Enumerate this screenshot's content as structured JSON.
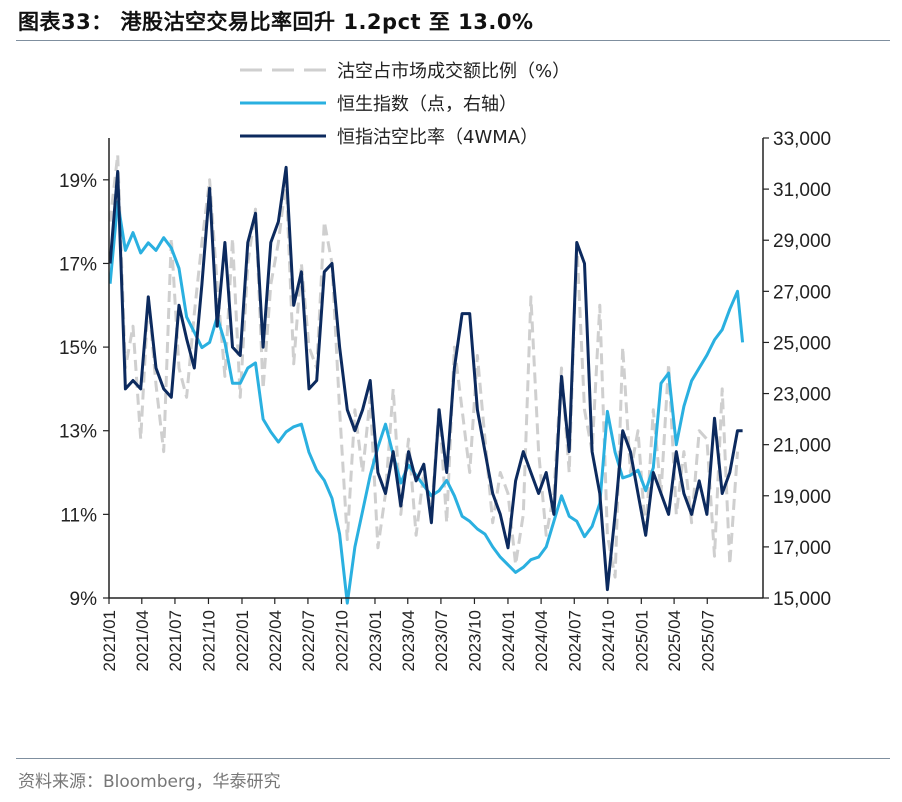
{
  "header": {
    "title": "图表33： 港股沽空交易比率回升 1.2pct 至 13.0%"
  },
  "footer": {
    "source": "资料来源：Bloomberg，华泰研究"
  },
  "chart_data": {
    "type": "line",
    "x_tick_labels": [
      "2021/01",
      "2021/04",
      "2021/07",
      "2021/10",
      "2022/01",
      "2022/04",
      "2022/07",
      "2022/10",
      "2023/01",
      "2023/04",
      "2023/07",
      "2023/10",
      "2024/01",
      "2024/04",
      "2024/07",
      "2024/10",
      "2025/01",
      "2025/04",
      "2025/07"
    ],
    "y_left": {
      "ticks": [
        9,
        11,
        13,
        15,
        17,
        19
      ],
      "tick_labels": [
        "9%",
        "11%",
        "13%",
        "15%",
        "17%",
        "19%"
      ],
      "range": [
        9,
        20
      ]
    },
    "y_right": {
      "ticks": [
        15000,
        17000,
        19000,
        21000,
        23000,
        25000,
        27000,
        29000,
        31000,
        33000
      ],
      "tick_labels": [
        "15,000",
        "17,000",
        "19,000",
        "21,000",
        "23,000",
        "25,000",
        "27,000",
        "29,000",
        "31,000",
        "33,000"
      ],
      "range": [
        15000,
        33000
      ]
    },
    "grid": false,
    "legend_position": "top-left",
    "series": [
      {
        "name": "沽空占市场成交额比例（%）",
        "axis": "left",
        "color": "#cfcfcf",
        "style": "dashed",
        "x": [
          "2021-01-04",
          "2021-01-25",
          "2021-02-15",
          "2021-03-08",
          "2021-03-29",
          "2021-04-19",
          "2021-05-10",
          "2021-05-31",
          "2021-06-21",
          "2021-07-12",
          "2021-08-02",
          "2021-08-23",
          "2021-09-13",
          "2021-10-04",
          "2021-10-25",
          "2021-11-15",
          "2021-12-06",
          "2021-12-27",
          "2022-01-17",
          "2022-02-07",
          "2022-02-28",
          "2022-03-21",
          "2022-04-11",
          "2022-05-02",
          "2022-05-23",
          "2022-06-13",
          "2022-07-04",
          "2022-07-25",
          "2022-08-15",
          "2022-09-05",
          "2022-09-26",
          "2022-10-17",
          "2022-11-07",
          "2022-11-28",
          "2022-12-19",
          "2023-01-09",
          "2023-01-30",
          "2023-02-20",
          "2023-03-13",
          "2023-04-03",
          "2023-04-24",
          "2023-05-15",
          "2023-06-05",
          "2023-06-26",
          "2023-07-17",
          "2023-08-07",
          "2023-08-28",
          "2023-09-18",
          "2023-10-09",
          "2023-10-30",
          "2023-11-20",
          "2023-12-11",
          "2024-01-01",
          "2024-01-22",
          "2024-02-12",
          "2024-03-04",
          "2024-03-25",
          "2024-04-15",
          "2024-05-06",
          "2024-05-27",
          "2024-06-17",
          "2024-07-08",
          "2024-07-29",
          "2024-08-19",
          "2024-09-09",
          "2024-09-30",
          "2024-10-21",
          "2024-11-11",
          "2024-12-02",
          "2024-12-23",
          "2025-01-13",
          "2025-02-03",
          "2025-02-24",
          "2025-03-17",
          "2025-04-07",
          "2025-04-28",
          "2025-05-19",
          "2025-06-09",
          "2025-06-30",
          "2025-07-21",
          "2025-08-11",
          "2025-09-01",
          "2025-09-22"
        ],
        "y": [
          18.0,
          19.6,
          14.5,
          15.5,
          12.8,
          16.2,
          14.1,
          12.5,
          17.6,
          14.5,
          13.8,
          15.8,
          17.5,
          19.0,
          16.5,
          14.3,
          17.6,
          13.8,
          17.0,
          18.3,
          14.0,
          16.5,
          17.5,
          19.0,
          14.6,
          17.0,
          15.0,
          14.5,
          18.0,
          17.0,
          13.5,
          10.4,
          13.5,
          12.0,
          13.8,
          10.2,
          11.5,
          14.0,
          11.0,
          12.8,
          10.5,
          12.0,
          11.0,
          13.6,
          10.8,
          15.0,
          13.5,
          12.0,
          14.8,
          12.8,
          10.8,
          12.0,
          11.5,
          9.8,
          11.0,
          16.2,
          12.5,
          10.5,
          11.5,
          14.5,
          12.0,
          17.5,
          13.5,
          12.5,
          16.0,
          10.5,
          9.5,
          15.0,
          12.0,
          13.0,
          10.5,
          13.5,
          11.5,
          14.6,
          11.0,
          12.5,
          10.8,
          13.0,
          12.8,
          10.0,
          14.0,
          9.8,
          12.5
        ]
      },
      {
        "name": "恒生指数（点，右轴）",
        "axis": "right",
        "color": "#2ab0e0",
        "style": "solid",
        "x": [
          "2021-01-04",
          "2021-01-25",
          "2021-02-15",
          "2021-03-08",
          "2021-03-29",
          "2021-04-19",
          "2021-05-10",
          "2021-05-31",
          "2021-06-21",
          "2021-07-12",
          "2021-08-02",
          "2021-08-23",
          "2021-09-13",
          "2021-10-04",
          "2021-10-25",
          "2021-11-15",
          "2021-12-06",
          "2021-12-27",
          "2022-01-17",
          "2022-02-07",
          "2022-02-28",
          "2022-03-21",
          "2022-04-11",
          "2022-05-02",
          "2022-05-23",
          "2022-06-13",
          "2022-07-04",
          "2022-07-25",
          "2022-08-15",
          "2022-09-05",
          "2022-09-26",
          "2022-10-17",
          "2022-11-07",
          "2022-11-28",
          "2022-12-19",
          "2023-01-09",
          "2023-01-30",
          "2023-02-20",
          "2023-03-13",
          "2023-04-03",
          "2023-04-24",
          "2023-05-15",
          "2023-06-05",
          "2023-06-26",
          "2023-07-17",
          "2023-08-07",
          "2023-08-28",
          "2023-09-18",
          "2023-10-09",
          "2023-10-30",
          "2023-11-20",
          "2023-12-11",
          "2024-01-01",
          "2024-01-22",
          "2024-02-12",
          "2024-03-04",
          "2024-03-25",
          "2024-04-15",
          "2024-05-06",
          "2024-05-27",
          "2024-06-17",
          "2024-07-08",
          "2024-07-29",
          "2024-08-19",
          "2024-09-09",
          "2024-09-30",
          "2024-10-21",
          "2024-11-11",
          "2024-12-02",
          "2024-12-23",
          "2025-01-13",
          "2025-02-03",
          "2025-02-24",
          "2025-03-17",
          "2025-04-07",
          "2025-04-28",
          "2025-05-19",
          "2025-06-09",
          "2025-06-30",
          "2025-07-21",
          "2025-08-11",
          "2025-09-01",
          "2025-09-22",
          "2025-10-06"
        ],
        "y": [
          27300,
          30500,
          28600,
          29300,
          28500,
          28900,
          28600,
          29100,
          28700,
          27900,
          26000,
          25400,
          24800,
          25000,
          26000,
          25000,
          23400,
          23400,
          24000,
          24200,
          22000,
          21500,
          21100,
          21500,
          21700,
          21800,
          20700,
          20000,
          19600,
          18900,
          17500,
          14800,
          17000,
          18400,
          19800,
          20900,
          21800,
          20600,
          19500,
          20200,
          19800,
          19400,
          19000,
          19200,
          19600,
          19000,
          18200,
          18000,
          17700,
          17500,
          17000,
          16600,
          16300,
          16000,
          16200,
          16500,
          16600,
          17000,
          18000,
          19000,
          18200,
          18000,
          17400,
          17800,
          18700,
          22300,
          20700,
          19700,
          19800,
          20000,
          19200,
          20100,
          23400,
          23800,
          21000,
          22500,
          23500,
          24000,
          24500,
          25100,
          25500,
          26300,
          27000,
          25000
        ]
      },
      {
        "name": "恒指沽空比率（4WMA）",
        "axis": "left",
        "color": "#0c2a5e",
        "style": "solid",
        "x": [
          "2021-01-04",
          "2021-01-25",
          "2021-02-15",
          "2021-03-08",
          "2021-03-29",
          "2021-04-19",
          "2021-05-10",
          "2021-05-31",
          "2021-06-21",
          "2021-07-12",
          "2021-08-02",
          "2021-08-23",
          "2021-09-13",
          "2021-10-04",
          "2021-10-25",
          "2021-11-15",
          "2021-12-06",
          "2021-12-27",
          "2022-01-17",
          "2022-02-07",
          "2022-02-28",
          "2022-03-21",
          "2022-04-11",
          "2022-05-02",
          "2022-05-23",
          "2022-06-13",
          "2022-07-04",
          "2022-07-25",
          "2022-08-15",
          "2022-09-05",
          "2022-09-26",
          "2022-10-17",
          "2022-11-07",
          "2022-11-28",
          "2022-12-19",
          "2023-01-09",
          "2023-01-30",
          "2023-02-20",
          "2023-03-13",
          "2023-04-03",
          "2023-04-24",
          "2023-05-15",
          "2023-06-05",
          "2023-06-26",
          "2023-07-17",
          "2023-08-07",
          "2023-08-28",
          "2023-09-18",
          "2023-10-09",
          "2023-10-30",
          "2023-11-20",
          "2023-12-11",
          "2024-01-01",
          "2024-01-22",
          "2024-02-12",
          "2024-03-04",
          "2024-03-25",
          "2024-04-15",
          "2024-05-06",
          "2024-05-27",
          "2024-06-17",
          "2024-07-08",
          "2024-07-29",
          "2024-08-19",
          "2024-09-09",
          "2024-09-30",
          "2024-10-21",
          "2024-11-11",
          "2024-12-02",
          "2024-12-23",
          "2025-01-13",
          "2025-02-03",
          "2025-02-24",
          "2025-03-17",
          "2025-04-07",
          "2025-04-28",
          "2025-05-19",
          "2025-06-09",
          "2025-06-30",
          "2025-07-21",
          "2025-08-11",
          "2025-09-01",
          "2025-09-22",
          "2025-10-06"
        ],
        "y": [
          17.0,
          19.2,
          14.0,
          14.2,
          14.0,
          16.2,
          14.5,
          14.0,
          13.8,
          16.0,
          15.2,
          14.5,
          16.5,
          18.8,
          15.5,
          17.5,
          15.0,
          14.8,
          17.5,
          18.2,
          15.0,
          17.5,
          18.0,
          19.3,
          16.0,
          16.8,
          14.0,
          14.2,
          16.8,
          17.0,
          15.0,
          13.5,
          13.0,
          13.5,
          14.2,
          12.0,
          11.5,
          12.5,
          11.2,
          12.5,
          11.8,
          12.2,
          10.8,
          13.5,
          12.0,
          14.5,
          15.8,
          15.8,
          13.5,
          12.5,
          11.5,
          11.0,
          10.2,
          11.8,
          12.5,
          12.0,
          11.5,
          12.0,
          11.0,
          14.3,
          12.5,
          17.5,
          17.0,
          12.5,
          11.5,
          9.2,
          11.0,
          13.0,
          12.5,
          11.5,
          10.5,
          12.0,
          11.5,
          11.0,
          12.5,
          11.5,
          11.0,
          11.8,
          11.0,
          13.3,
          11.5,
          12.0,
          13.0,
          13.0
        ]
      }
    ]
  }
}
